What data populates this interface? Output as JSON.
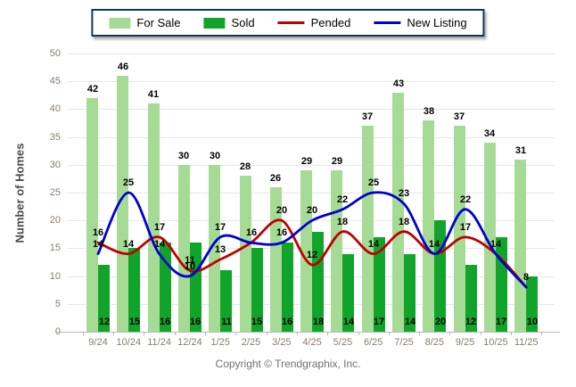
{
  "legend": {
    "items": [
      {
        "label": "For Sale",
        "type": "bar",
        "color": "#A6DB95"
      },
      {
        "label": "Sold",
        "type": "bar",
        "color": "#11A42A"
      },
      {
        "label": "Pended",
        "type": "line",
        "color": "#C00000"
      },
      {
        "label": "New Listing",
        "type": "line",
        "color": "#0000D2"
      }
    ]
  },
  "chart_data": {
    "type": "bar+line combo",
    "categories": [
      "9/24",
      "10/24",
      "11/24",
      "12/24",
      "1/25",
      "2/25",
      "3/25",
      "4/25",
      "5/25",
      "6/25",
      "7/25",
      "8/25",
      "9/25",
      "10/25",
      "11/25"
    ],
    "series": [
      {
        "name": "For Sale",
        "type": "bar",
        "color": "#A6DB95",
        "values": [
          42,
          46,
          41,
          30,
          30,
          28,
          26,
          29,
          29,
          37,
          43,
          38,
          37,
          34,
          31
        ]
      },
      {
        "name": "Sold",
        "type": "bar",
        "color": "#11A42A",
        "values": [
          12,
          15,
          16,
          16,
          11,
          15,
          16,
          18,
          14,
          17,
          14,
          20,
          12,
          17,
          10
        ]
      },
      {
        "name": "Pended",
        "type": "line",
        "color": "#C00000",
        "values": [
          16,
          14,
          17,
          11,
          13,
          16,
          20,
          12,
          18,
          14,
          18,
          14,
          17,
          14,
          8
        ]
      },
      {
        "name": "New Listing",
        "type": "line",
        "color": "#0000D2",
        "values": [
          14,
          25,
          14,
          10,
          17,
          16,
          16,
          20,
          22,
          25,
          23,
          14,
          22,
          14,
          8
        ]
      }
    ],
    "ylabel": "Number of Homes",
    "ylim": [
      0,
      50
    ],
    "yticks": [
      0,
      5,
      10,
      15,
      20,
      25,
      30,
      35,
      40,
      45,
      50
    ],
    "grid": true,
    "legend_position": "top"
  },
  "footer": {
    "copyright": "Copyright © Trendgraphix, Inc."
  }
}
